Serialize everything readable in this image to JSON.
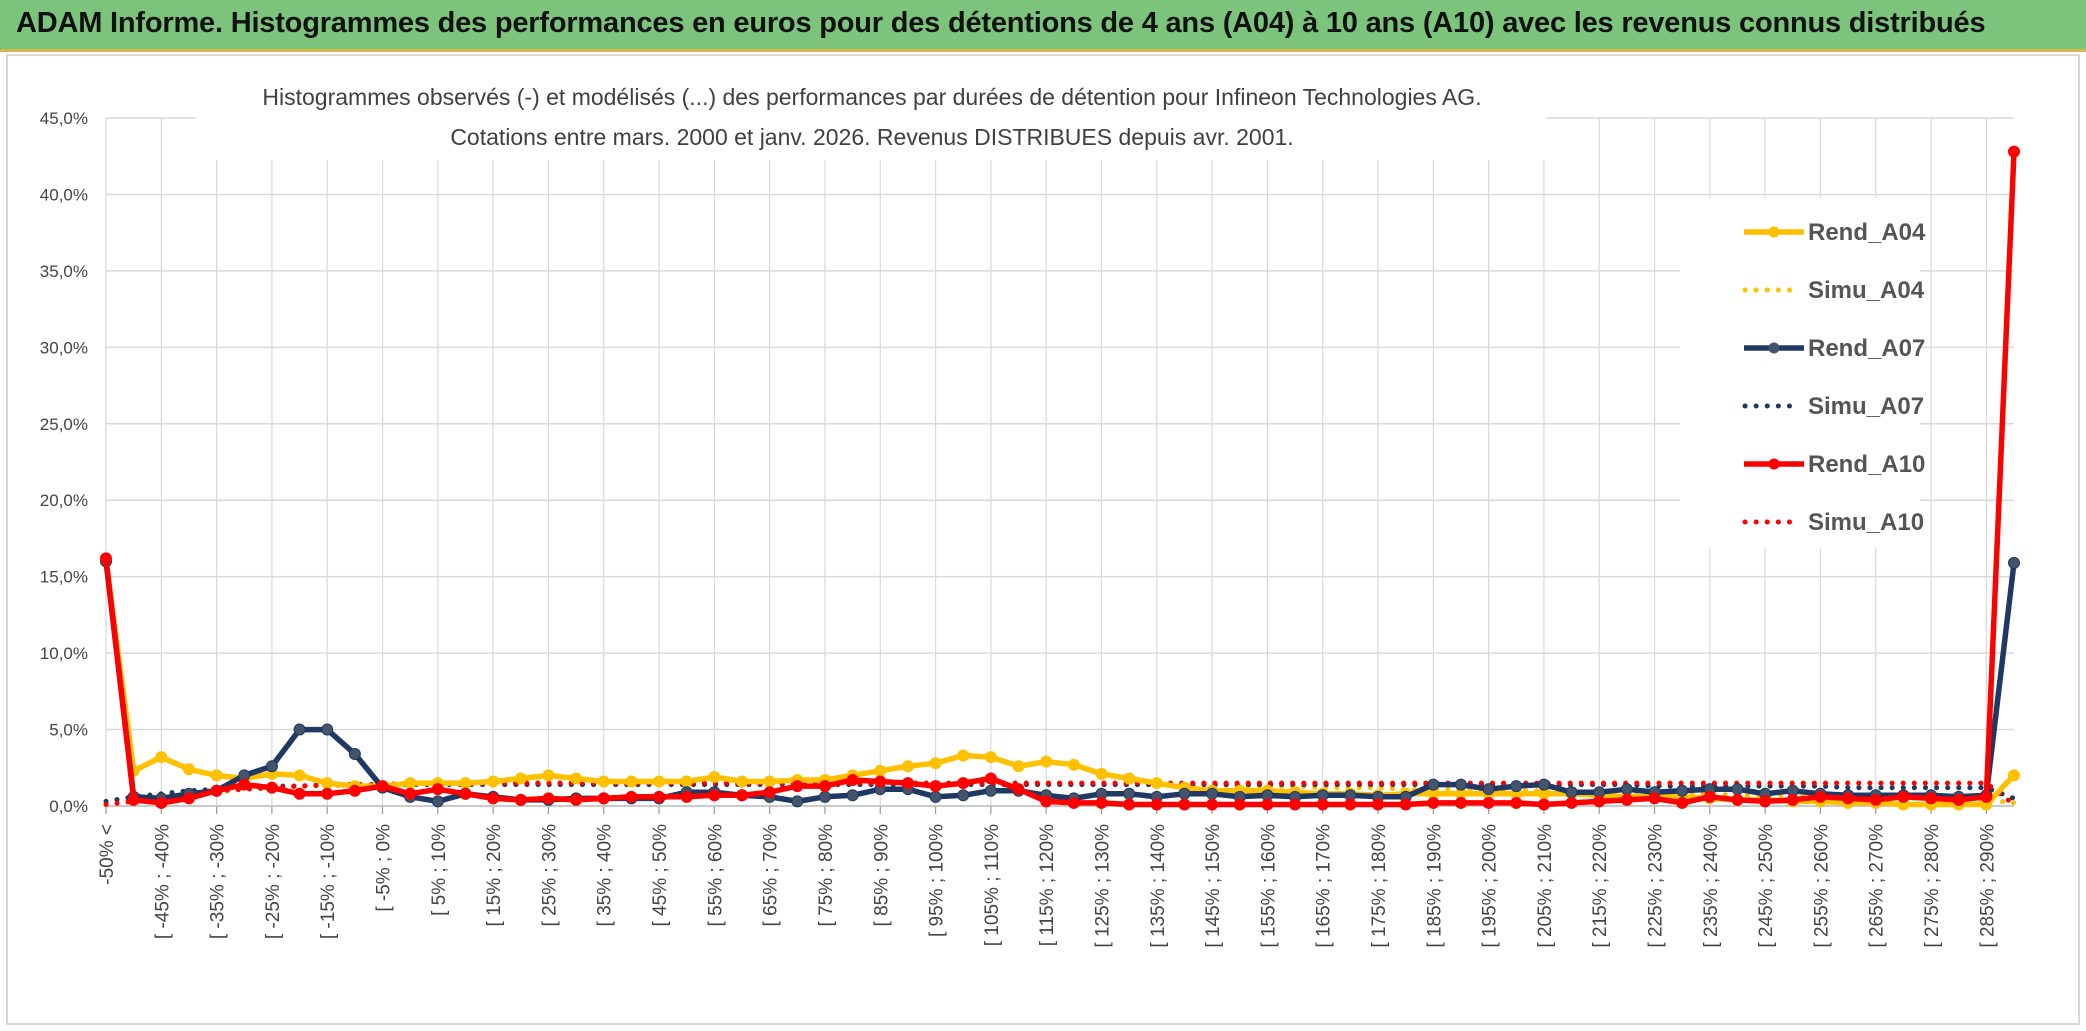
{
  "banner": {
    "title": "ADAM Informe. Histogrammes des performances en euros pour des détentions de 4 ans (A04) à 10 ans (A10) avec les revenus connus distribués"
  },
  "colors": {
    "banner_bg": "#7cc47b",
    "a04": "#ffc000",
    "a07": "#1f3864",
    "a10": "#ff0000",
    "grid": "#d9d9d9"
  },
  "chart_data": {
    "type": "line",
    "title_lines": [
      "Histogrammes observés (-) et modélisés (...) des performances par durées de détention pour Infineon Technologies AG.",
      "Cotations entre mars. 2000 et janv. 2026. Revenus DISTRIBUES depuis avr. 2001."
    ],
    "ylim": [
      0,
      45
    ],
    "yticks": [
      "0,0%",
      "5,0%",
      "10,0%",
      "15,0%",
      "20,0%",
      "25,0%",
      "30,0%",
      "35,0%",
      "40,0%",
      "45,0%"
    ],
    "xlabels": [
      "-50% <",
      "[ -45% ; -40%",
      "[ -35% ; -30%",
      "[ -25% ; -20%",
      "[ -15% ; -10%",
      "[ -5% ; 0%",
      "[ 5% ; 10%",
      "[ 15% ; 20%",
      "[ 25% ; 30%",
      "[ 35% ; 40%",
      "[ 45% ; 50%",
      "[ 55% ; 60%",
      "[ 65% ; 70%",
      "[ 75% ; 80%",
      "[ 85% ; 90%",
      "[ 95% ; 100%",
      "[ 105% ; 110%",
      "[ 115% ; 120%",
      "[ 125% ; 130%",
      "[ 135% ; 140%",
      "[ 145% ; 150%",
      "[ 155% ; 160%",
      "[ 165% ; 170%",
      "[ 175% ; 180%",
      "[ 185% ; 190%",
      "[ 195% ; 200%",
      "[ 205% ; 210%",
      "[ 215% ; 220%",
      "[ 225% ; 230%",
      "[ 235% ; 240%",
      "[ 245% ; 250%",
      "[ 255% ; 260%",
      "[ 265% ; 270%",
      "[ 275% ; 280%",
      "[ 285% ; 290%"
    ],
    "n_points": 70,
    "legend_position": "top-right",
    "series": [
      {
        "name": "Rend_A04",
        "style": "solid",
        "color": "#ffc000",
        "values": [
          16.0,
          2.3,
          3.2,
          2.4,
          2.0,
          1.8,
          2.1,
          2.0,
          1.5,
          1.3,
          1.3,
          1.5,
          1.5,
          1.5,
          1.6,
          1.8,
          2.0,
          1.8,
          1.6,
          1.6,
          1.6,
          1.6,
          1.9,
          1.6,
          1.6,
          1.7,
          1.7,
          2.0,
          2.3,
          2.6,
          2.8,
          3.3,
          3.2,
          2.6,
          2.9,
          2.7,
          2.1,
          1.8,
          1.5,
          1.2,
          1.0,
          1.0,
          1.0,
          0.9,
          0.8,
          0.8,
          0.7,
          0.8,
          0.8,
          0.8,
          0.8,
          0.8,
          0.8,
          0.8,
          0.7,
          0.6,
          0.6,
          0.6,
          0.5,
          0.4,
          0.4,
          0.3,
          0.3,
          0.2,
          0.2,
          0.1,
          0.1,
          0.1,
          0.1,
          2.0
        ]
      },
      {
        "name": "Simu_A04",
        "style": "dotted",
        "color": "#ffc000",
        "values": [
          0.1,
          0.4,
          0.6,
          0.8,
          0.9,
          1.1,
          1.2,
          1.3,
          1.3,
          1.4,
          1.4,
          1.4,
          1.5,
          1.5,
          1.5,
          1.5,
          1.5,
          1.5,
          1.5,
          1.5,
          1.5,
          1.5,
          1.5,
          1.5,
          1.5,
          1.5,
          1.5,
          1.5,
          1.5,
          1.5,
          1.5,
          1.5,
          1.5,
          1.5,
          1.5,
          1.5,
          1.4,
          1.4,
          1.4,
          1.4,
          1.4,
          1.3,
          1.3,
          1.3,
          1.2,
          1.2,
          1.2,
          1.1,
          1.1,
          1.1,
          1.0,
          1.0,
          1.0,
          0.9,
          0.9,
          0.9,
          0.8,
          0.8,
          0.8,
          0.7,
          0.7,
          0.7,
          0.6,
          0.6,
          0.6,
          0.5,
          0.5,
          0.5,
          0.4,
          0.2
        ]
      },
      {
        "name": "Rend_A07",
        "style": "solid",
        "color": "#1f3864",
        "values": [
          16.0,
          0.6,
          0.5,
          0.8,
          1.0,
          2.0,
          2.6,
          5.0,
          5.0,
          3.4,
          1.2,
          0.6,
          0.3,
          0.8,
          0.6,
          0.4,
          0.4,
          0.5,
          0.5,
          0.5,
          0.5,
          0.9,
          0.9,
          0.7,
          0.6,
          0.3,
          0.6,
          0.7,
          1.1,
          1.1,
          0.6,
          0.7,
          1.0,
          1.0,
          0.7,
          0.5,
          0.8,
          0.8,
          0.6,
          0.8,
          0.8,
          0.6,
          0.7,
          0.6,
          0.7,
          0.7,
          0.6,
          0.6,
          1.4,
          1.4,
          1.1,
          1.3,
          1.4,
          0.9,
          0.9,
          1.1,
          0.9,
          1.0,
          1.1,
          1.1,
          0.8,
          1.0,
          0.8,
          0.7,
          0.7,
          0.7,
          0.7,
          0.6,
          0.7,
          15.9
        ]
      },
      {
        "name": "Simu_A07",
        "style": "dotted",
        "color": "#1f3864",
        "values": [
          0.3,
          0.6,
          0.8,
          1.0,
          1.1,
          1.2,
          1.3,
          1.3,
          1.4,
          1.4,
          1.4,
          1.4,
          1.4,
          1.4,
          1.4,
          1.4,
          1.4,
          1.4,
          1.4,
          1.4,
          1.4,
          1.4,
          1.4,
          1.4,
          1.4,
          1.4,
          1.4,
          1.4,
          1.4,
          1.4,
          1.4,
          1.4,
          1.4,
          1.4,
          1.4,
          1.4,
          1.4,
          1.4,
          1.4,
          1.4,
          1.4,
          1.4,
          1.4,
          1.4,
          1.4,
          1.4,
          1.4,
          1.4,
          1.4,
          1.4,
          1.4,
          1.4,
          1.4,
          1.4,
          1.4,
          1.4,
          1.3,
          1.3,
          1.3,
          1.3,
          1.3,
          1.3,
          1.3,
          1.2,
          1.2,
          1.2,
          1.2,
          1.2,
          1.2,
          0.5
        ]
      },
      {
        "name": "Rend_A10",
        "style": "solid",
        "color": "#ff0000",
        "values": [
          16.2,
          0.4,
          0.2,
          0.5,
          1.0,
          1.4,
          1.2,
          0.8,
          0.8,
          1.0,
          1.3,
          0.8,
          1.1,
          0.8,
          0.5,
          0.4,
          0.5,
          0.4,
          0.5,
          0.6,
          0.6,
          0.6,
          0.7,
          0.7,
          0.9,
          1.3,
          1.3,
          1.7,
          1.6,
          1.5,
          1.3,
          1.5,
          1.8,
          1.1,
          0.3,
          0.2,
          0.2,
          0.1,
          0.1,
          0.1,
          0.1,
          0.1,
          0.1,
          0.1,
          0.1,
          0.1,
          0.1,
          0.1,
          0.2,
          0.2,
          0.2,
          0.2,
          0.1,
          0.2,
          0.3,
          0.4,
          0.5,
          0.2,
          0.6,
          0.4,
          0.3,
          0.4,
          0.6,
          0.5,
          0.4,
          0.6,
          0.5,
          0.4,
          0.6,
          42.8
        ]
      },
      {
        "name": "Simu_A10",
        "style": "dotted",
        "color": "#ff0000",
        "values": [
          0.1,
          0.3,
          0.5,
          0.8,
          1.0,
          1.1,
          1.2,
          1.3,
          1.4,
          1.4,
          1.4,
          1.5,
          1.5,
          1.5,
          1.5,
          1.5,
          1.5,
          1.5,
          1.5,
          1.5,
          1.5,
          1.5,
          1.5,
          1.5,
          1.5,
          1.5,
          1.5,
          1.5,
          1.5,
          1.5,
          1.5,
          1.5,
          1.5,
          1.5,
          1.5,
          1.5,
          1.5,
          1.5,
          1.5,
          1.5,
          1.5,
          1.5,
          1.5,
          1.5,
          1.5,
          1.5,
          1.5,
          1.5,
          1.5,
          1.5,
          1.5,
          1.5,
          1.5,
          1.5,
          1.5,
          1.5,
          1.5,
          1.5,
          1.5,
          1.5,
          1.5,
          1.5,
          1.5,
          1.5,
          1.5,
          1.5,
          1.5,
          1.5,
          1.5,
          0.1
        ]
      }
    ]
  }
}
